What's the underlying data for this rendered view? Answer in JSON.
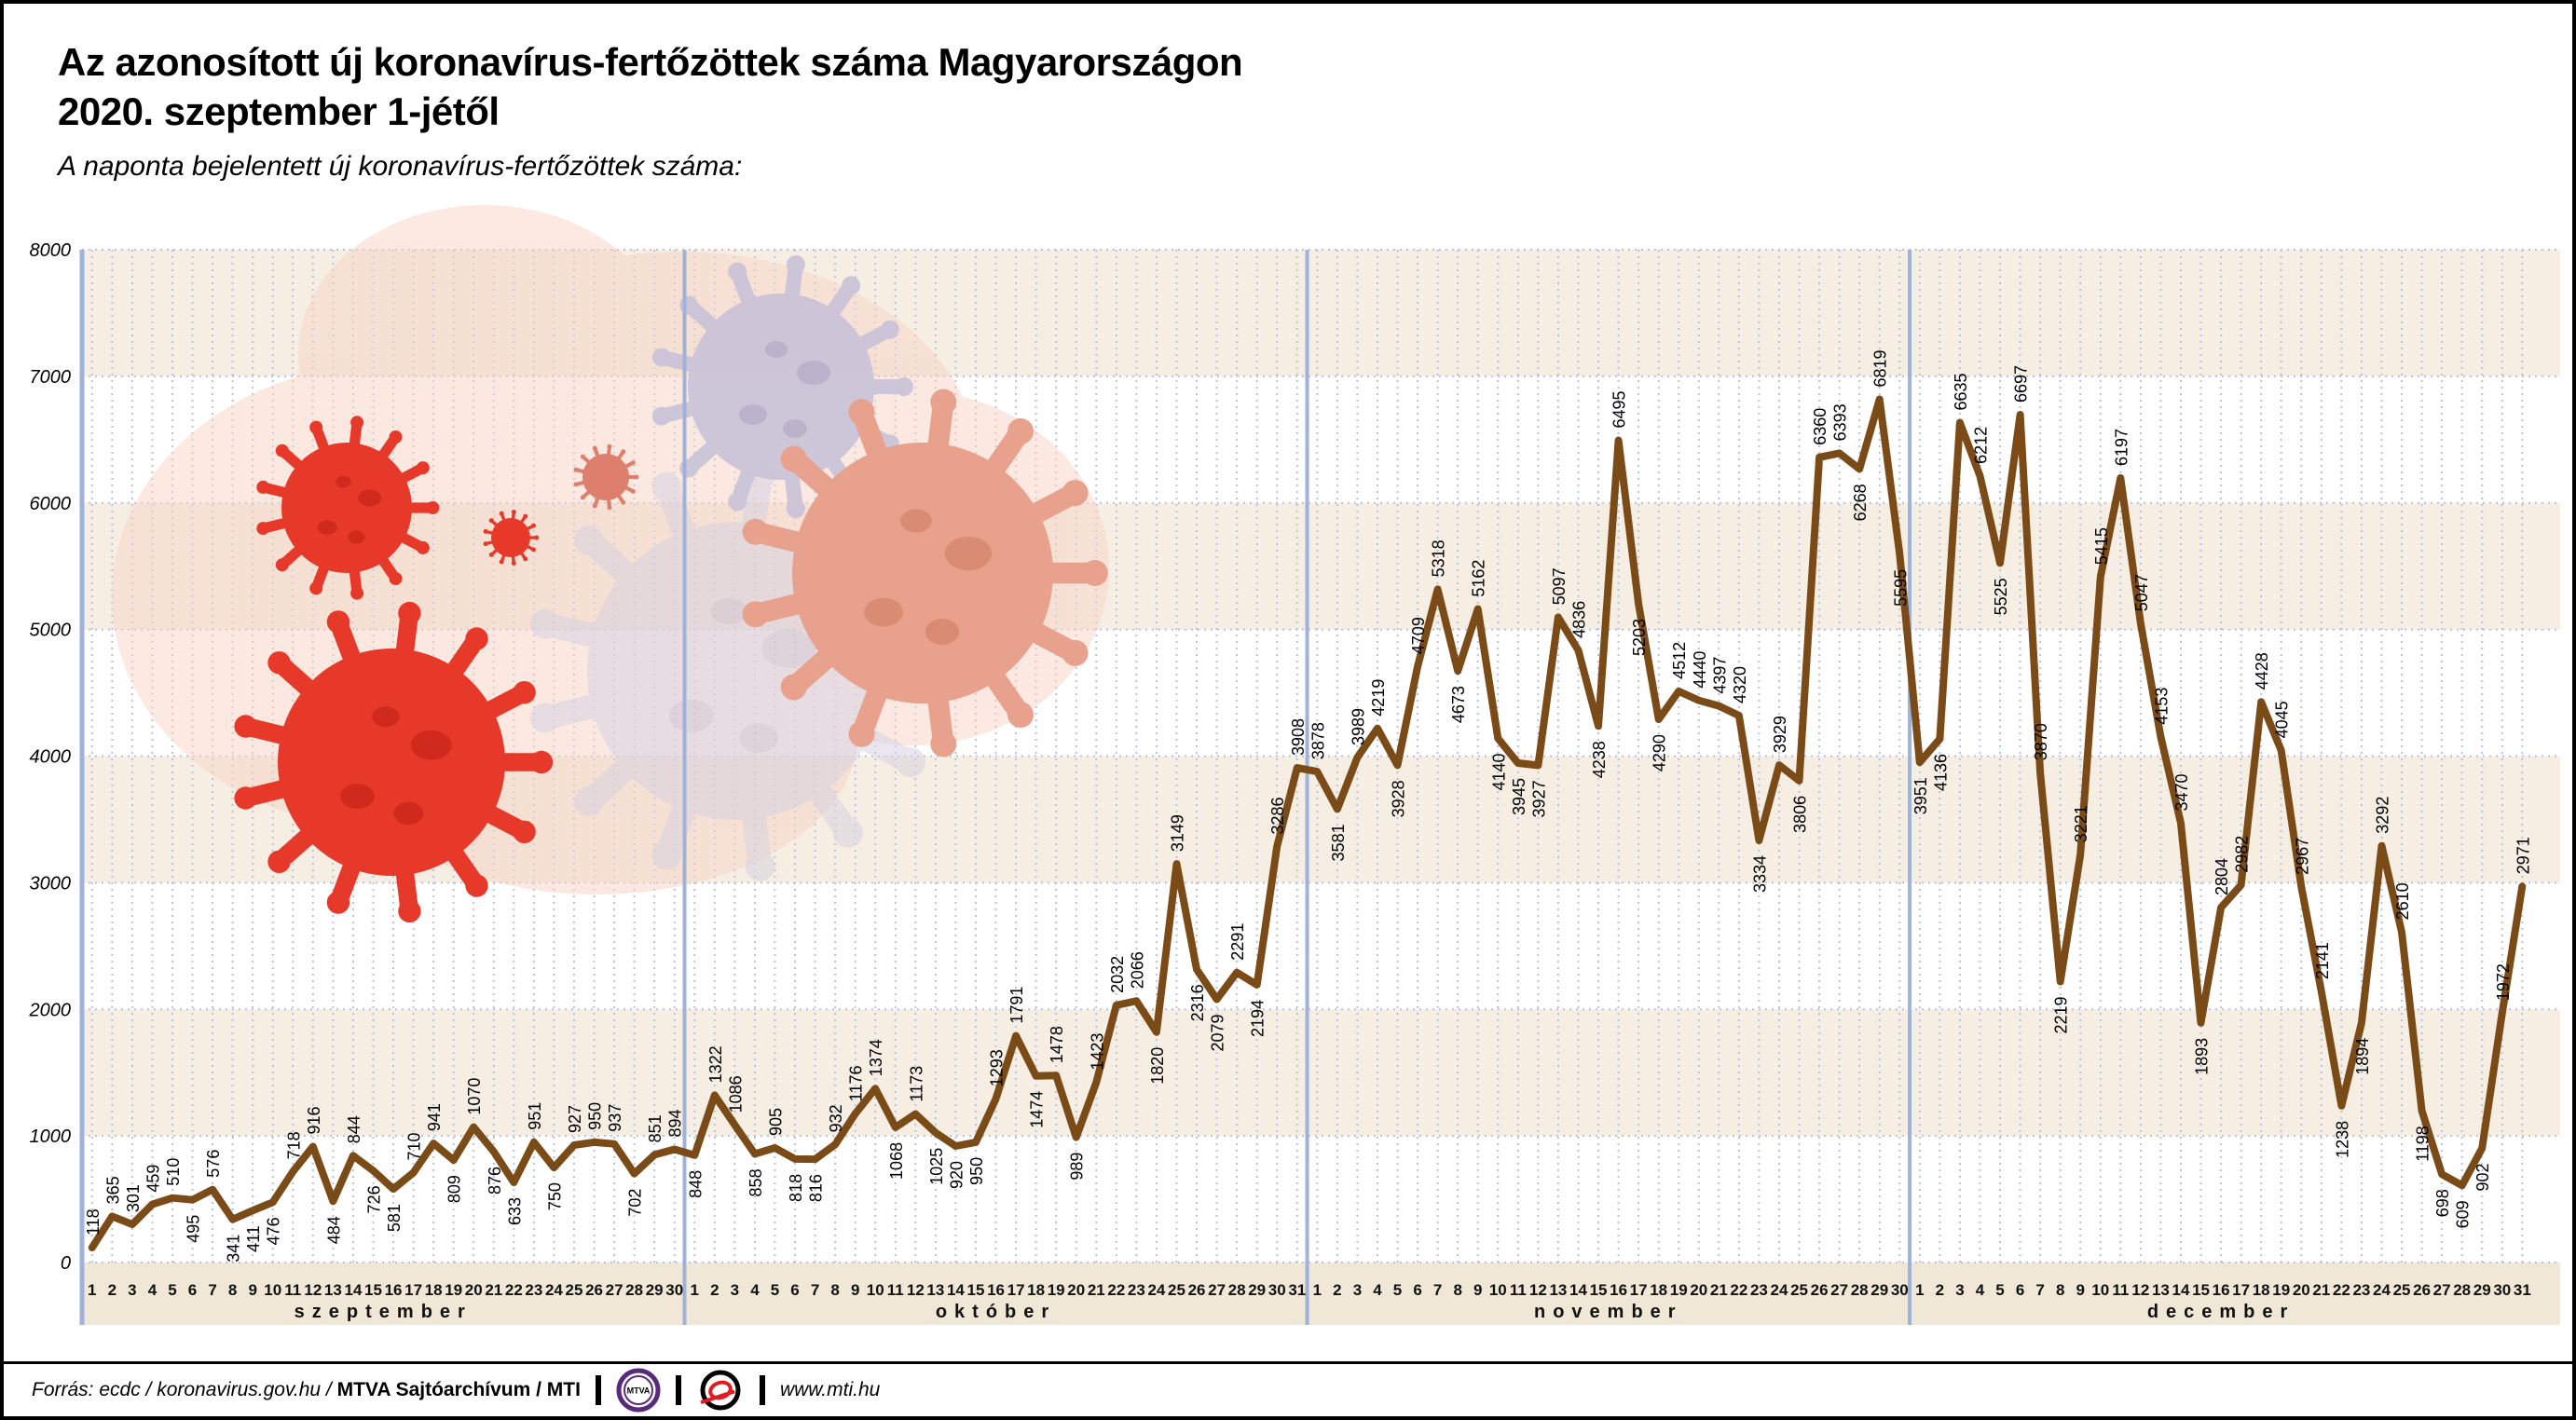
{
  "title": {
    "line1": "Az azonosított új koronavírus-fertőzöttek száma Magyarországon",
    "line2": "2020. szeptember 1-jétől"
  },
  "subtitle": "A naponta bejelentett új koronavírus-fertőzöttek száma:",
  "footer": {
    "source_prefix": "Forrás: ecdc / koronavirus.gov.hu /",
    "source_bold": "MTVA Sajtóarchívum / MTI",
    "mtva_logo_text": "MTVA",
    "website": "www.mti.hu"
  },
  "chart_data": {
    "type": "line",
    "title": "A naponta bejelentett új koronavírus-fertőzöttek száma",
    "ylim": [
      0,
      8000
    ],
    "ytick_step": 1000,
    "grid": true,
    "line_color": "#7a4a17",
    "colors": {
      "band": "#f6eee2",
      "strip": "#f1e7d7",
      "grid": "#b6c2e1",
      "axis": "#9fb2da",
      "virus_red": "#e6392a",
      "virus_red_spot": "#cf2a1b",
      "virus_salmon": "#e8a18c",
      "virus_salmon_spot": "#d98c73",
      "virus_small_salmon": "#dd7f6c",
      "virus_lavender": "#cbc4d8",
      "virus_lavender_spot": "#b9b1ca",
      "virus_pale_lavender": "#d8d3e2",
      "virus_pale_lavender_spot": "#c8c2d5",
      "virus_blob": "#f7d3c5"
    },
    "months": [
      {
        "name": "szeptember",
        "values": [
          118,
          365,
          301,
          459,
          510,
          495,
          576,
          341,
          411,
          476,
          718,
          916,
          484,
          844,
          726,
          581,
          710,
          941,
          809,
          1070,
          876,
          633,
          951,
          750,
          927,
          950,
          937,
          702,
          851,
          894
        ],
        "label_below_days": [
          6,
          8,
          9,
          10,
          13,
          15,
          16,
          19,
          21,
          22,
          24,
          28
        ]
      },
      {
        "name": "október",
        "values": [
          848,
          1322,
          1086,
          858,
          905,
          818,
          816,
          932,
          1176,
          1374,
          1068,
          1173,
          1025,
          920,
          950,
          1293,
          1791,
          1474,
          1478,
          989,
          1423,
          2032,
          2066,
          1820,
          3149,
          2316,
          2079,
          2291,
          2194,
          3286,
          3908
        ],
        "label_below_days": [
          1,
          4,
          6,
          7,
          11,
          13,
          14,
          15,
          18,
          20,
          24,
          26,
          27,
          29
        ]
      },
      {
        "name": "november",
        "values": [
          3878,
          3581,
          3989,
          4219,
          3928,
          4709,
          5318,
          4673,
          5162,
          4140,
          3945,
          3927,
          5097,
          4836,
          4238,
          6495,
          5203,
          4290,
          4512,
          4440,
          4397,
          4320,
          3334,
          3929,
          3806,
          6360,
          6393,
          6268,
          6819,
          5595
        ],
        "label_below_days": [
          2,
          5,
          8,
          10,
          11,
          12,
          15,
          17,
          18,
          23,
          25,
          28,
          30
        ]
      },
      {
        "name": "december",
        "values": [
          3951,
          4136,
          6635,
          6212,
          5525,
          6697,
          3870,
          2219,
          3221,
          5415,
          6197,
          5047,
          4153,
          3470,
          1893,
          2804,
          2982,
          4428,
          4045,
          2967,
          2141,
          1238,
          1894,
          3292,
          2610,
          1198,
          698,
          609,
          902,
          1972,
          2971
        ],
        "label_below_days": [
          1,
          2,
          5,
          8,
          15,
          22,
          23,
          26,
          27,
          28,
          29
        ]
      }
    ]
  }
}
